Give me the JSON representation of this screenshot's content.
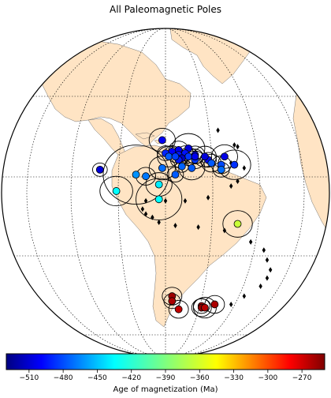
{
  "chart_data": {
    "type": "scatter",
    "title": "All Paleomagnetic Poles",
    "projection": "orthographic",
    "colorbar": {
      "label": "Age of magnetization (Ma)",
      "colormap": "jet",
      "range": [
        -530,
        -250
      ],
      "ticks": [
        -510,
        -480,
        -450,
        -420,
        -390,
        -360,
        -330,
        -300,
        -270
      ]
    },
    "poles": [
      {
        "ax": 0.3,
        "ay": -0.14,
        "age": -505,
        "a95": 0.045
      },
      {
        "ax": 0.49,
        "ay": -0.32,
        "age": -498,
        "a95": 0.08
      },
      {
        "ax": 0.57,
        "ay": -0.27,
        "age": -505,
        "a95": 0.1
      },
      {
        "ax": 0.54,
        "ay": -0.26,
        "age": -500,
        "a95": 0.06
      },
      {
        "ax": 0.52,
        "ay": -0.25,
        "age": -495,
        "a95": 0.04
      },
      {
        "ax": 0.59,
        "ay": -0.23,
        "age": -508,
        "a95": 0.06
      },
      {
        "ax": 0.56,
        "ay": -0.24,
        "age": -490,
        "a95": 0.05
      },
      {
        "ax": 0.5,
        "ay": -0.24,
        "age": -485,
        "a95": 0.05
      },
      {
        "ax": 0.54,
        "ay": -0.23,
        "age": -490,
        "a95": 0.04
      },
      {
        "ax": 0.57,
        "ay": -0.22,
        "age": -480,
        "a95": 0.06
      },
      {
        "ax": 0.55,
        "ay": -0.21,
        "age": -512,
        "a95": 0.04
      },
      {
        "ax": 0.54,
        "ay": -0.2,
        "age": -488,
        "a95": 0.05
      },
      {
        "ax": 0.59,
        "ay": -0.2,
        "age": -480,
        "a95": 0.06
      },
      {
        "ax": 0.51,
        "ay": -0.22,
        "age": -470,
        "a95": 0.07
      },
      {
        "ax": 0.53,
        "ay": -0.22,
        "age": -478,
        "a95": 0.04
      },
      {
        "ax": 0.59,
        "ay": -0.22,
        "age": -500,
        "a95": 0.05
      },
      {
        "ax": 0.63,
        "ay": -0.2,
        "age": -492,
        "a95": 0.05
      },
      {
        "ax": 0.62,
        "ay": -0.22,
        "age": -505,
        "a95": 0.07
      },
      {
        "ax": 0.68,
        "ay": -0.22,
        "age": -502,
        "a95": 0.08
      },
      {
        "ax": 0.64,
        "ay": -0.18,
        "age": -470,
        "a95": 0.06
      },
      {
        "ax": 0.67,
        "ay": -0.17,
        "age": -475,
        "a95": 0.06
      },
      {
        "ax": 0.71,
        "ay": -0.17,
        "age": -482,
        "a95": 0.1
      },
      {
        "ax": 0.67,
        "ay": -0.14,
        "age": -465,
        "a95": 0.05
      },
      {
        "ax": 0.55,
        "ay": -0.16,
        "age": -468,
        "a95": 0.04
      },
      {
        "ax": 0.58,
        "ay": -0.15,
        "age": -470,
        "a95": 0.08
      },
      {
        "ax": 0.49,
        "ay": -0.15,
        "age": -465,
        "a95": 0.08
      },
      {
        "ax": 0.44,
        "ay": -0.1,
        "age": -462,
        "a95": 0.06
      },
      {
        "ax": 0.41,
        "ay": -0.11,
        "age": -455,
        "a95": 0.2
      },
      {
        "ax": 0.53,
        "ay": -0.11,
        "age": -470,
        "a95": 0.05
      },
      {
        "ax": 0.48,
        "ay": -0.05,
        "age": -430,
        "a95": 0.08
      },
      {
        "ax": 0.35,
        "ay": -0.01,
        "age": -425,
        "a95": 0.1
      },
      {
        "ax": 0.48,
        "ay": 0.04,
        "age": -425,
        "a95": 0.14
      },
      {
        "ax": 0.72,
        "ay": 0.19,
        "age": -370,
        "a95": 0.09
      },
      {
        "ax": 0.52,
        "ay": 0.63,
        "age": -258,
        "a95": 0.06
      },
      {
        "ax": 0.52,
        "ay": 0.66,
        "age": -262,
        "a95": 0.05
      },
      {
        "ax": 0.54,
        "ay": 0.71,
        "age": -268,
        "a95": 0.06
      },
      {
        "ax": 0.61,
        "ay": 0.69,
        "age": -260,
        "a95": 0.05
      },
      {
        "ax": 0.61,
        "ay": 0.7,
        "age": -255,
        "a95": 0.06
      },
      {
        "ax": 0.62,
        "ay": 0.7,
        "age": -265,
        "a95": 0.07
      },
      {
        "ax": 0.65,
        "ay": 0.68,
        "age": -262,
        "a95": 0.06
      }
    ],
    "apwp_markers": [
      [
        0.66,
        -0.38
      ],
      [
        0.71,
        -0.29
      ],
      [
        0.72,
        -0.28
      ],
      [
        0.7,
        -0.18
      ],
      [
        0.74,
        -0.15
      ],
      [
        0.72,
        -0.07
      ],
      [
        0.7,
        -0.04
      ],
      [
        0.63,
        0.03
      ],
      [
        0.56,
        0.05
      ],
      [
        0.5,
        0.05
      ],
      [
        0.44,
        0.05
      ],
      [
        0.43,
        0.1
      ],
      [
        0.44,
        0.13
      ],
      [
        0.46,
        0.15
      ],
      [
        0.48,
        0.18
      ],
      [
        0.53,
        0.2
      ],
      [
        0.6,
        0.21
      ],
      [
        0.68,
        0.23
      ],
      [
        0.76,
        0.3
      ],
      [
        0.8,
        0.35
      ],
      [
        0.81,
        0.41
      ],
      [
        0.82,
        0.47
      ],
      [
        0.81,
        0.52
      ],
      [
        0.79,
        0.57
      ],
      [
        0.74,
        0.63
      ],
      [
        0.7,
        0.68
      ]
    ]
  }
}
